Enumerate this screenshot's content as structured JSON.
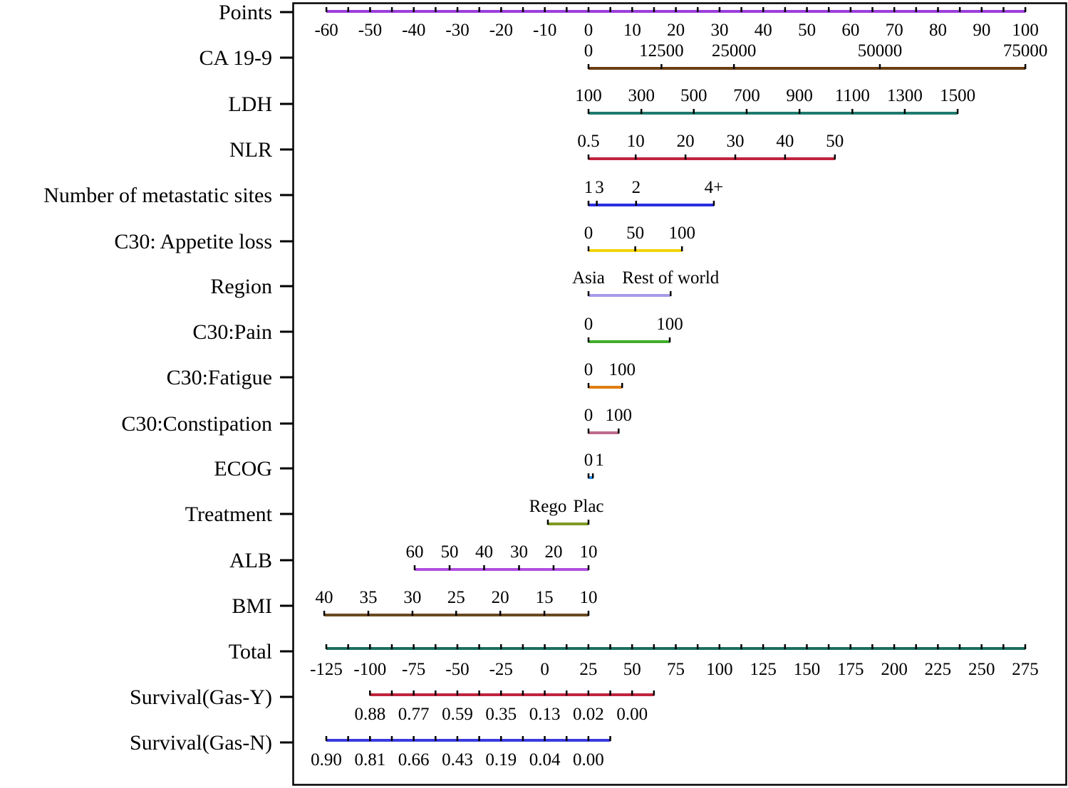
{
  "chart_data": {
    "type": "nomogram",
    "grid": false,
    "points_axis": {
      "name": "Points",
      "color": "#9b3fdc",
      "range": [
        -60,
        100
      ],
      "tick_step": 5,
      "labels": [
        -60,
        -50,
        -40,
        -30,
        -20,
        -10,
        0,
        10,
        20,
        30,
        40,
        50,
        60,
        70,
        80,
        90,
        100
      ]
    },
    "variables": [
      {
        "name": "CA 19-9",
        "color": "#6b3f12",
        "ticks": [
          {
            "label": "0",
            "points": 0
          },
          {
            "label": "12500",
            "points": 16.7
          },
          {
            "label": "25000",
            "points": 33.3
          },
          {
            "label": "50000",
            "points": 66.7
          },
          {
            "label": "75000",
            "points": 100
          }
        ]
      },
      {
        "name": "LDH",
        "color": "#1f7a6e",
        "ticks": [
          {
            "label": "100",
            "points": 0
          },
          {
            "label": "300",
            "points": 12.1
          },
          {
            "label": "500",
            "points": 24.1
          },
          {
            "label": "700",
            "points": 36.2
          },
          {
            "label": "900",
            "points": 48.3
          },
          {
            "label": "1100",
            "points": 60.4
          },
          {
            "label": "1300",
            "points": 72.4
          },
          {
            "label": "1500",
            "points": 84.5
          }
        ]
      },
      {
        "name": "NLR",
        "color": "#c0243d",
        "ticks": [
          {
            "label": "0.5",
            "points": 0
          },
          {
            "label": "10",
            "points": 10.8
          },
          {
            "label": "20",
            "points": 22.2
          },
          {
            "label": "30",
            "points": 33.6
          },
          {
            "label": "40",
            "points": 45.0
          },
          {
            "label": "50",
            "points": 56.4
          }
        ]
      },
      {
        "name": "Number of metastatic sites",
        "color": "#2a2ee0",
        "ticks": [
          {
            "label": "1",
            "points": 0
          },
          {
            "label": "3",
            "points": 1.9
          },
          {
            "label": "2",
            "points": 10.9
          },
          {
            "label": "4+",
            "points": 28.7
          }
        ]
      },
      {
        "name": "C30: Appetite loss",
        "color": "#f2d40a",
        "ticks": [
          {
            "label": "0",
            "points": 0
          },
          {
            "label": "50",
            "points": 10.7
          },
          {
            "label": "100",
            "points": 21.4
          }
        ]
      },
      {
        "name": "Region",
        "color": "#a99ae8",
        "ticks": [
          {
            "label": "Asia",
            "points": 0
          },
          {
            "label": "Rest of world",
            "points": 18.8
          }
        ]
      },
      {
        "name": "C30:Pain",
        "color": "#3fae2a",
        "ticks": [
          {
            "label": "0",
            "points": 0
          },
          {
            "label": "100",
            "points": 18.6
          }
        ]
      },
      {
        "name": "C30:Fatigue",
        "color": "#e07d10",
        "ticks": [
          {
            "label": "0",
            "points": 0
          },
          {
            "label": "100",
            "points": 7.7
          }
        ]
      },
      {
        "name": "C30:Constipation",
        "color": "#c06a8e",
        "ticks": [
          {
            "label": "0",
            "points": 0
          },
          {
            "label": "100",
            "points": 6.9
          }
        ]
      },
      {
        "name": "ECOG",
        "color": "#2a8ce8",
        "ticks": [
          {
            "label": "0",
            "points": 0
          },
          {
            "label": "1",
            "points": 1.0
          }
        ]
      },
      {
        "name": "Treatment",
        "color": "#7f9a24",
        "ticks": [
          {
            "label": "Rego",
            "points": -9.3
          },
          {
            "label": "Plac",
            "points": 0
          }
        ]
      },
      {
        "name": "ALB",
        "color": "#b04fe0",
        "ticks": [
          {
            "label": "60",
            "points": -39.8
          },
          {
            "label": "50",
            "points": -31.8
          },
          {
            "label": "40",
            "points": -23.9
          },
          {
            "label": "30",
            "points": -15.9
          },
          {
            "label": "20",
            "points": -8.0
          },
          {
            "label": "10",
            "points": 0
          }
        ]
      },
      {
        "name": "BMI",
        "color": "#6b4a22",
        "ticks": [
          {
            "label": "40",
            "points": -60.5
          },
          {
            "label": "35",
            "points": -50.4
          },
          {
            "label": "30",
            "points": -40.3
          },
          {
            "label": "25",
            "points": -30.3
          },
          {
            "label": "20",
            "points": -20.2
          },
          {
            "label": "15",
            "points": -10.1
          },
          {
            "label": "10",
            "points": 0
          }
        ]
      }
    ],
    "total_axis": {
      "name": "Total",
      "color": "#1b6e60",
      "range": [
        -125,
        275
      ],
      "tick_step": 12.5,
      "labels": [
        -125,
        -100,
        -75,
        -50,
        -25,
        0,
        25,
        50,
        75,
        100,
        125,
        150,
        175,
        200,
        225,
        250,
        275
      ]
    },
    "survival": [
      {
        "name": "Survival(Gas-Y)",
        "color": "#c0243d",
        "total_range": [
          -100,
          62.5
        ],
        "tick_step": 12.5,
        "labels": [
          {
            "value": "0.88",
            "total": -100
          },
          {
            "value": "0.77",
            "total": -75
          },
          {
            "value": "0.59",
            "total": -50
          },
          {
            "value": "0.35",
            "total": -25
          },
          {
            "value": "0.13",
            "total": 0
          },
          {
            "value": "0.02",
            "total": 25
          },
          {
            "value": "0.00",
            "total": 50
          }
        ]
      },
      {
        "name": "Survival(Gas-N)",
        "color": "#3a3ae0",
        "total_range": [
          -125,
          37.5
        ],
        "tick_step": 12.5,
        "labels": [
          {
            "value": "0.90",
            "total": -125
          },
          {
            "value": "0.81",
            "total": -100
          },
          {
            "value": "0.66",
            "total": -75
          },
          {
            "value": "0.43",
            "total": -50
          },
          {
            "value": "0.19",
            "total": -25
          },
          {
            "value": "0.04",
            "total": 0
          },
          {
            "value": "0.00",
            "total": 25
          }
        ]
      }
    ]
  }
}
